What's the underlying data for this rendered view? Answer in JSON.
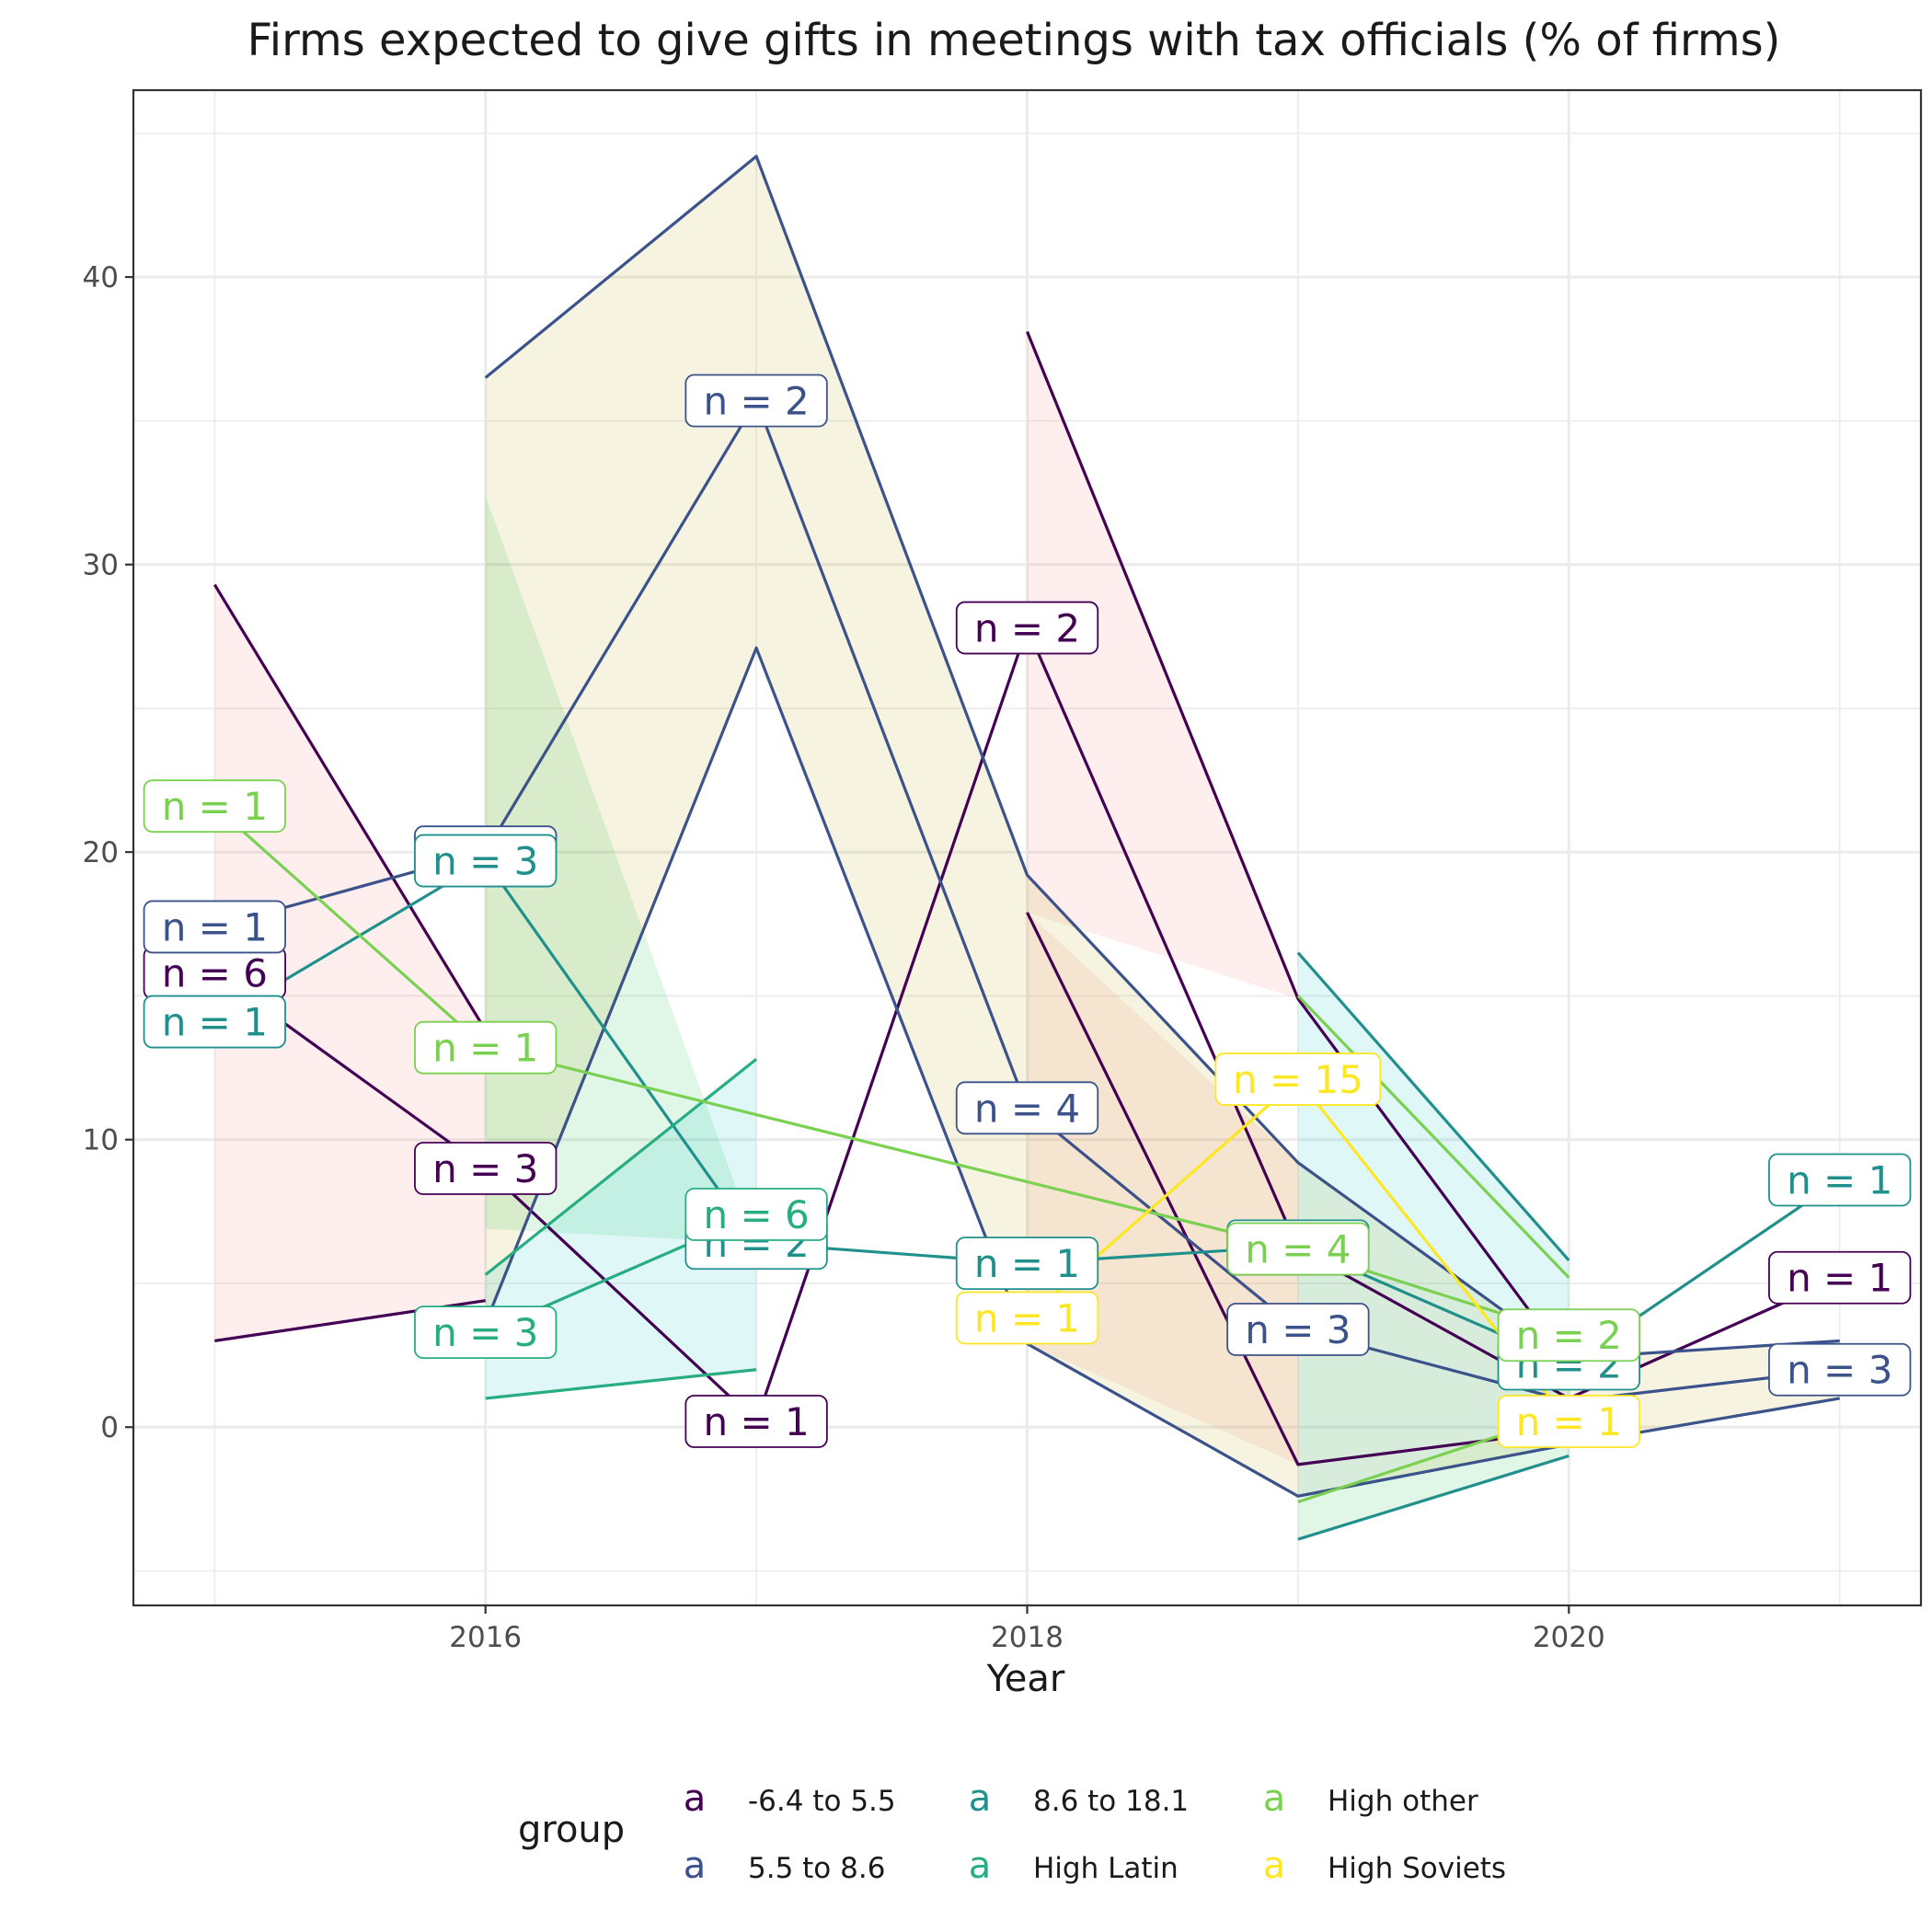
{
  "chart_data": {
    "type": "line",
    "title": "Firms expected to give gifts in meetings with tax officials (% of firms)",
    "xlabel": "Year",
    "ylabel": "",
    "xlim": [
      2014.7,
      2021.3
    ],
    "ylim": [
      -6.2,
      46.5
    ],
    "x_ticks": [
      2016,
      2018,
      2020
    ],
    "y_ticks": [
      0,
      10,
      20,
      30,
      40
    ],
    "grid": true,
    "legend": {
      "title": "group",
      "position": "bottom",
      "key_glyph": "a",
      "entries": [
        "-6.4 to 5.5",
        "5.5 to 8.6",
        "8.6 to 18.1",
        "High Latin",
        "High other",
        "High Soviets"
      ]
    },
    "series": [
      {
        "name": "-6.4 to 5.5",
        "color": "#440154",
        "x": [
          2015,
          2016,
          2017,
          2018,
          2019,
          2020,
          2021
        ],
        "y": [
          15.8,
          9.0,
          0.2,
          27.8,
          6.2,
          1.0,
          5.2
        ],
        "lower": [
          3.0,
          4.4,
          null,
          17.9,
          -1.3,
          -0.1,
          null
        ],
        "upper": [
          29.3,
          13.8,
          null,
          38.1,
          14.9,
          2.2,
          null
        ],
        "labels": [
          "n = 6",
          "n = 3",
          "n = 1",
          "n = 2",
          "n = 2",
          "",
          "n = 1"
        ]
      },
      {
        "name": "5.5 to 8.6",
        "color": "#3b528b",
        "x": [
          2015,
          2016,
          2017,
          2018,
          2019,
          2020,
          2021
        ],
        "y": [
          17.4,
          20.0,
          35.7,
          11.1,
          3.4,
          0.9,
          2.0
        ],
        "lower": [
          null,
          3.6,
          27.1,
          2.9,
          -2.4,
          -0.6,
          1.0
        ],
        "upper": [
          null,
          36.5,
          44.2,
          19.2,
          9.2,
          2.4,
          3.0
        ],
        "labels": [
          "n = 1",
          "n = 3",
          "n = 2",
          "n = 4",
          "n = 3",
          "",
          "n = 3"
        ]
      },
      {
        "name": "8.6 to 18.1",
        "color": "#21908d",
        "x": [
          2015,
          2016,
          2017,
          2018,
          2019,
          2020,
          2021
        ],
        "y": [
          14.1,
          19.7,
          6.4,
          5.7,
          6.3,
          2.2,
          8.6
        ],
        "lower": [
          null,
          6.9,
          null,
          null,
          -3.9,
          -1.0,
          null
        ],
        "upper": [
          null,
          32.4,
          null,
          null,
          16.5,
          5.8,
          null
        ],
        "labels": [
          "n = 1",
          "n = 3",
          "n = 2",
          "n = 1",
          "n = 4",
          "n = 2",
          "n = 1"
        ]
      },
      {
        "name": "High Latin",
        "color": "#27ad81",
        "x": [
          2016,
          2017
        ],
        "y": [
          3.3,
          7.4
        ],
        "lower": [
          1.0,
          2.0
        ],
        "upper": [
          5.3,
          12.8
        ],
        "labels": [
          "n = 3",
          "n = 6"
        ]
      },
      {
        "name": "High other",
        "color": "#7ad151",
        "x": [
          2015,
          2016,
          2019,
          2020
        ],
        "y": [
          21.6,
          13.2,
          6.2,
          3.2
        ],
        "lower": [
          null,
          null,
          -2.6,
          0.5
        ],
        "upper": [
          null,
          null,
          15.0,
          5.2
        ],
        "labels": [
          "n = 1",
          "n = 1",
          "n = 4",
          "n = 2"
        ]
      },
      {
        "name": "High Soviets",
        "color": "#fde725",
        "x": [
          2018,
          2019,
          2020
        ],
        "y": [
          3.8,
          12.1,
          0.2
        ],
        "lower": [
          null,
          null,
          null
        ],
        "upper": [
          null,
          null,
          null
        ],
        "labels": [
          "n = 1",
          "n = 15",
          "n = 1"
        ]
      }
    ],
    "ribbons": [
      {
        "fill": "#f8766d",
        "x": [
          2015,
          2016
        ],
        "lower": [
          3.0,
          4.4
        ],
        "upper": [
          29.3,
          13.8
        ]
      },
      {
        "fill": "#b79f00",
        "x": [
          2016,
          2017,
          2018
        ],
        "lower": [
          3.6,
          27.1,
          2.9
        ],
        "upper": [
          36.5,
          44.2,
          19.2
        ]
      },
      {
        "fill": "#00ba38",
        "x": [
          2016,
          2017
        ],
        "lower": [
          6.9,
          6.4
        ],
        "upper": [
          32.4,
          6.4
        ]
      },
      {
        "fill": "#00bfc4",
        "x": [
          2016,
          2017
        ],
        "lower": [
          1.0,
          2.0
        ],
        "upper": [
          5.3,
          12.8
        ]
      },
      {
        "fill": "#f8766d",
        "x": [
          2018,
          2019
        ],
        "lower": [
          17.9,
          14.9
        ],
        "upper": [
          38.1,
          14.9
        ]
      },
      {
        "fill": "#f8766d",
        "x": [
          2018,
          2019
        ],
        "lower": [
          2.9,
          -1.3
        ],
        "upper": [
          17.9,
          9.2
        ]
      },
      {
        "fill": "#b79f00",
        "x": [
          2018,
          2019,
          2020,
          2021
        ],
        "lower": [
          2.9,
          -2.4,
          -0.6,
          1.0
        ],
        "upper": [
          19.2,
          9.2,
          2.4,
          3.0
        ]
      },
      {
        "fill": "#00bfc4",
        "x": [
          2019,
          2020
        ],
        "lower": [
          -2.6,
          0.5
        ],
        "upper": [
          16.5,
          5.8
        ]
      },
      {
        "fill": "#00ba38",
        "x": [
          2019,
          2020
        ],
        "lower": [
          -3.9,
          -1.0
        ],
        "upper": [
          -2.6,
          0.5
        ]
      }
    ]
  }
}
